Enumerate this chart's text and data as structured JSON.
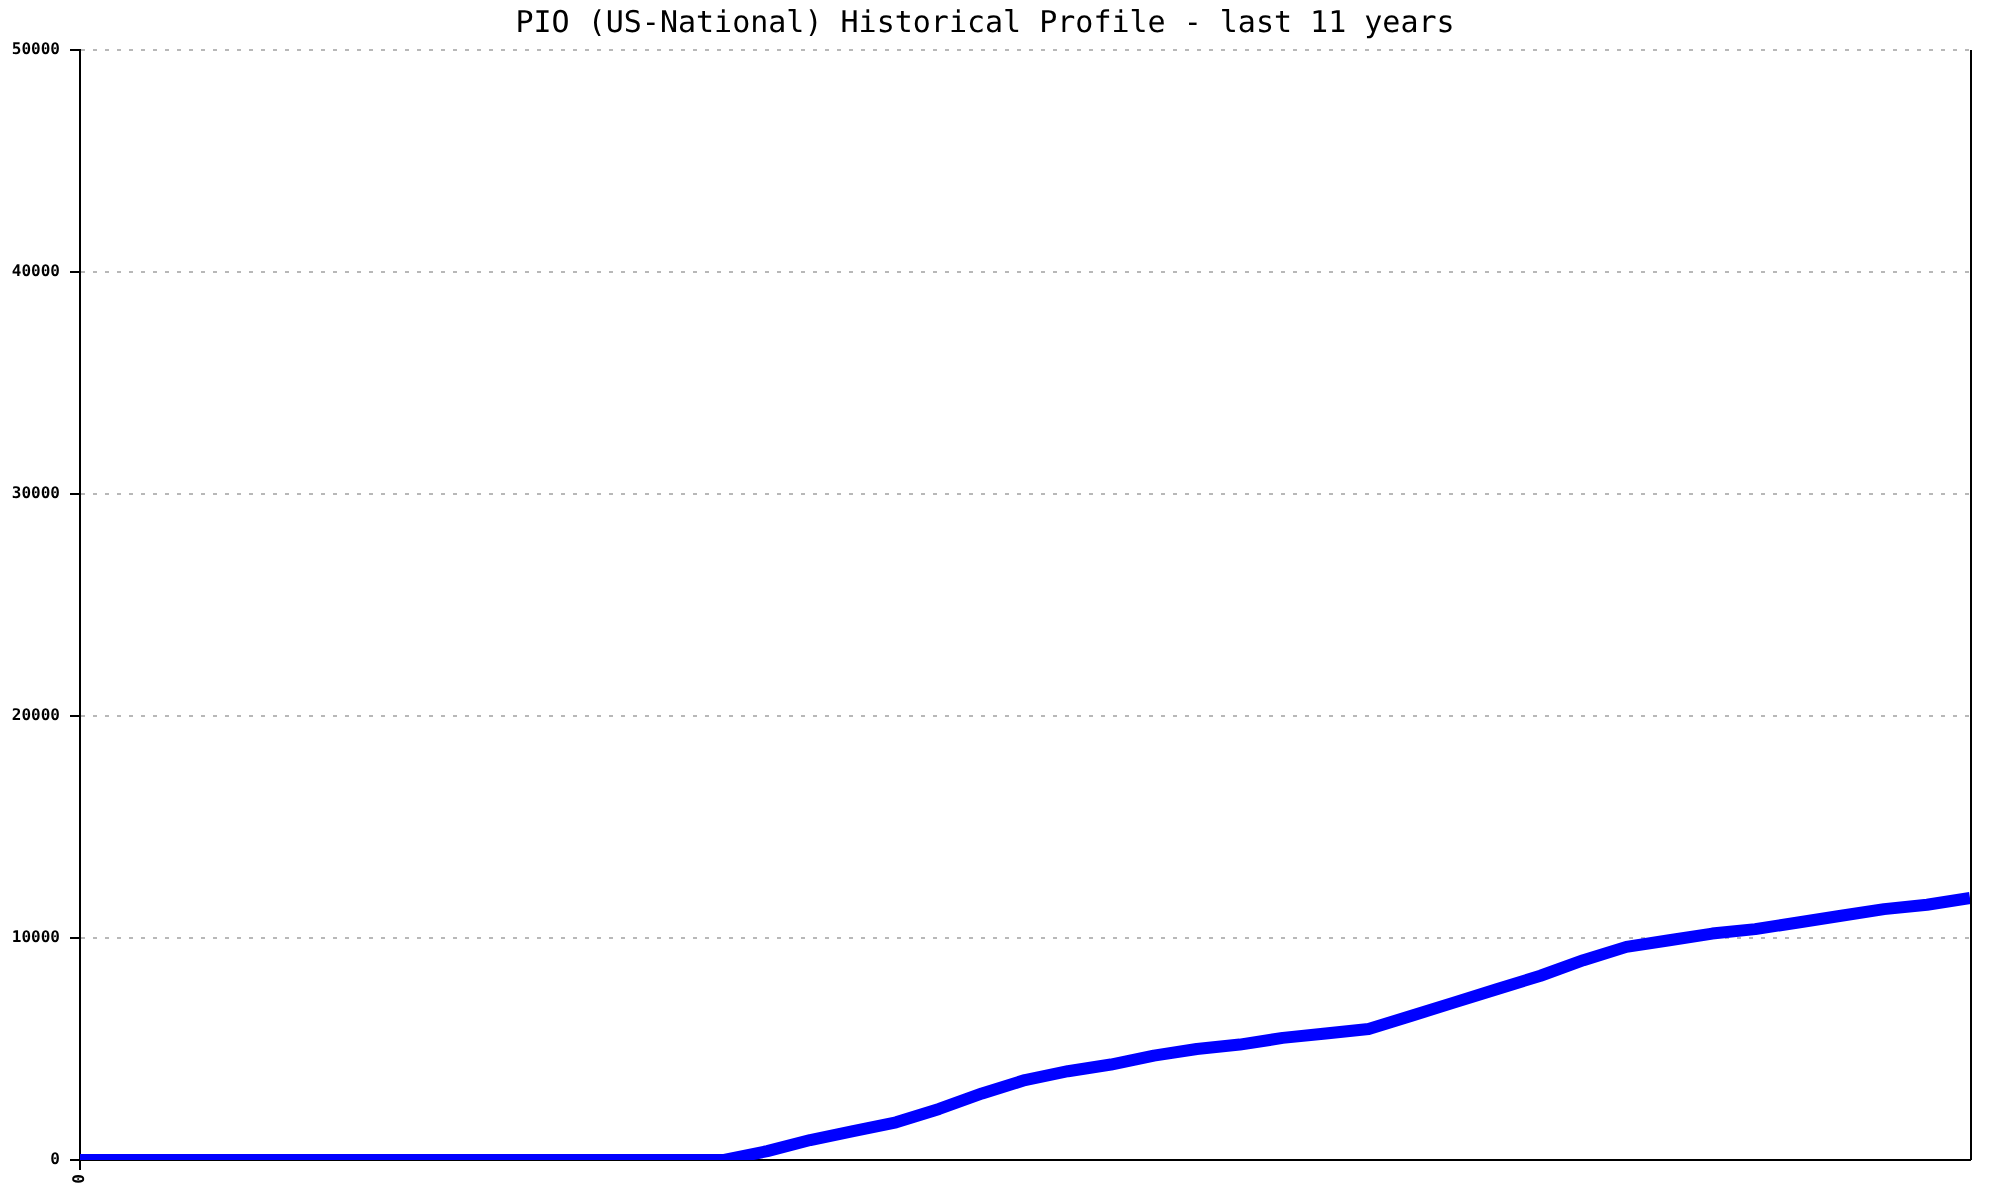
{
  "chart_data": {
    "type": "line",
    "title": "PIO (US-National) Historical Profile - last 11 years",
    "categories": [
      "0",
      null,
      null,
      null,
      null,
      null,
      null,
      null,
      null,
      null,
      null,
      null,
      null,
      null,
      null,
      null,
      null,
      null,
      null,
      null,
      null,
      null,
      null,
      null,
      null,
      null,
      null,
      null,
      null,
      null,
      null,
      null,
      null,
      null,
      null,
      null,
      null,
      null,
      null,
      null,
      null,
      null,
      null,
      null,
      null
    ],
    "series": [
      {
        "color": "#0000ff",
        "values": [
          0,
          0,
          0,
          0,
          0,
          0,
          0,
          0,
          0,
          0,
          0,
          0,
          0,
          0,
          0,
          0,
          400,
          900,
          1300,
          1700,
          2300,
          3000,
          3600,
          4000,
          4300,
          4700,
          5000,
          5200,
          5500,
          5700,
          5900,
          6500,
          7100,
          7700,
          8300,
          9000,
          9600,
          9900,
          10200,
          10400,
          10700,
          11000,
          11300,
          11500,
          11800
        ]
      }
    ],
    "ylim": [
      0,
      50000
    ],
    "yticks": [
      0,
      10000,
      20000,
      30000,
      40000,
      50000
    ],
    "grid": "y"
  }
}
